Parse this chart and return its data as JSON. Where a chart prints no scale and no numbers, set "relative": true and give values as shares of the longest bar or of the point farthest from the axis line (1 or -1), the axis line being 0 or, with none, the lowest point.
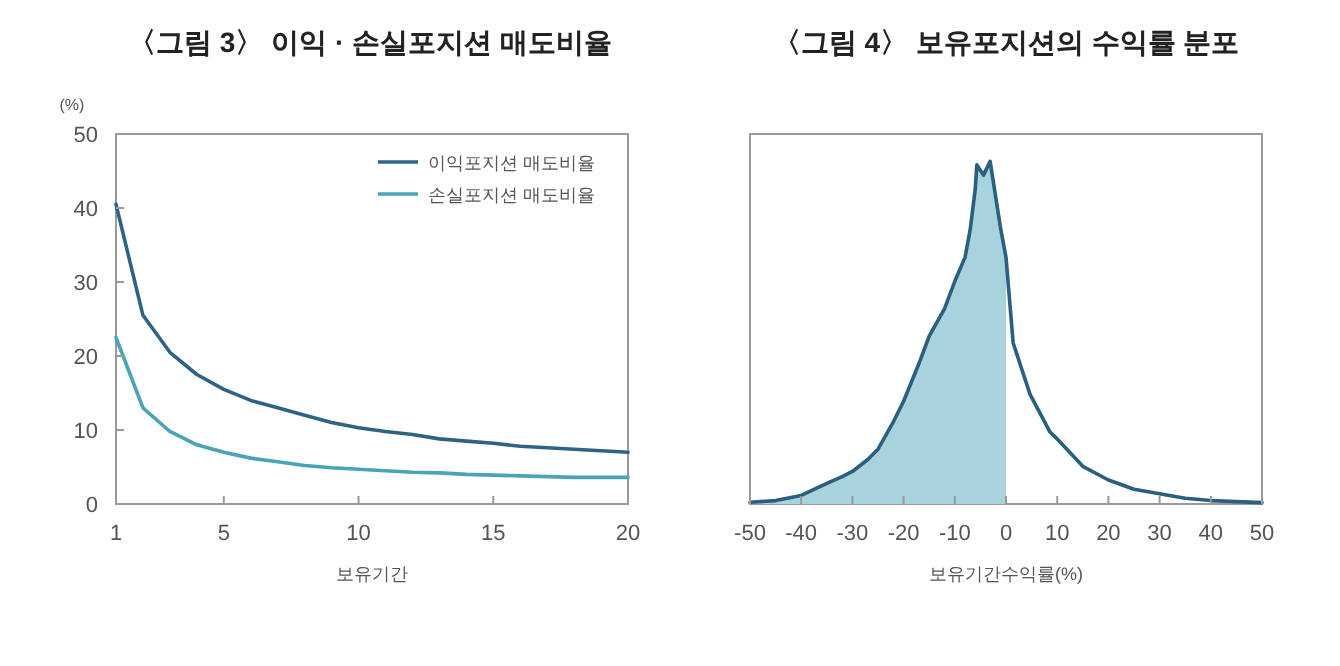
{
  "chart_data": [
    {
      "type": "line",
      "title": "〈그림 3〉 이익 · 손실포지션 매도비율",
      "xlabel": "보유기간",
      "ylabel": "(%)",
      "x": [
        1,
        2,
        3,
        4,
        5,
        6,
        7,
        8,
        9,
        10,
        11,
        12,
        13,
        14,
        15,
        16,
        17,
        18,
        19,
        20
      ],
      "xlim": [
        1,
        20
      ],
      "xticks": [
        1,
        5,
        10,
        15,
        20
      ],
      "ylim": [
        0,
        50
      ],
      "yticks": [
        0,
        10,
        20,
        30,
        40,
        50
      ],
      "legend": "top right",
      "grid": false,
      "series": [
        {
          "name": "이익포지션 매도비율",
          "color": "#2e6383",
          "values": [
            40.5,
            25.5,
            20.5,
            17.5,
            15.5,
            14,
            13,
            12,
            11,
            10.3,
            9.8,
            9.4,
            8.8,
            8.5,
            8.2,
            7.8,
            7.6,
            7.4,
            7.2,
            7
          ]
        },
        {
          "name": "손실포지션 매도비율",
          "color": "#4aa3b8",
          "values": [
            22.5,
            13,
            9.8,
            8,
            7,
            6.2,
            5.7,
            5.2,
            4.9,
            4.7,
            4.5,
            4.3,
            4.2,
            4,
            3.9,
            3.8,
            3.7,
            3.6,
            3.6,
            3.6
          ]
        }
      ]
    },
    {
      "type": "line",
      "title": "〈그림 4〉 보유포지션의 수익률 분포",
      "xlabel": "보유기간수익률(%)",
      "relative": true,
      "xlim": [
        -50,
        50
      ],
      "xticks": [
        -50,
        -40,
        -30,
        -20,
        -10,
        0,
        10,
        20,
        30,
        40,
        50
      ],
      "legend": false,
      "grid": false,
      "series": [
        {
          "type": "area",
          "color": "#a8d3dc",
          "x": [
            -50,
            -45,
            -40,
            -35,
            -32,
            -30,
            -27,
            -25,
            -22,
            -20,
            -17,
            -15,
            -12,
            -10,
            -8,
            -7,
            -6,
            -5.7,
            -4.4,
            -3.1,
            -1,
            0
          ],
          "values": [
            0.005,
            0.01,
            0.025,
            0.06,
            0.08,
            0.095,
            0.13,
            0.16,
            0.24,
            0.3,
            0.41,
            0.49,
            0.57,
            0.65,
            0.72,
            0.8,
            0.92,
            0.99,
            0.96,
            1,
            0.8,
            0.72
          ]
        },
        {
          "type": "line",
          "color": "#2b5f7f",
          "x": [
            -50,
            -45,
            -40,
            -35,
            -32,
            -30,
            -27,
            -25,
            -22,
            -20,
            -17,
            -15,
            -12,
            -10,
            -8,
            -7,
            -6,
            -5.7,
            -4.4,
            -3.1,
            -1,
            0,
            1.4,
            4.7,
            8.6,
            10,
            15,
            20,
            25,
            30,
            35,
            40,
            45,
            50
          ],
          "values": [
            0.005,
            0.01,
            0.025,
            0.06,
            0.08,
            0.095,
            0.13,
            0.16,
            0.24,
            0.3,
            0.41,
            0.49,
            0.57,
            0.65,
            0.72,
            0.8,
            0.92,
            0.99,
            0.96,
            1,
            0.8,
            0.72,
            0.47,
            0.32,
            0.21,
            0.19,
            0.11,
            0.07,
            0.043,
            0.03,
            0.017,
            0.01,
            0.007,
            0.004
          ]
        }
      ]
    }
  ]
}
